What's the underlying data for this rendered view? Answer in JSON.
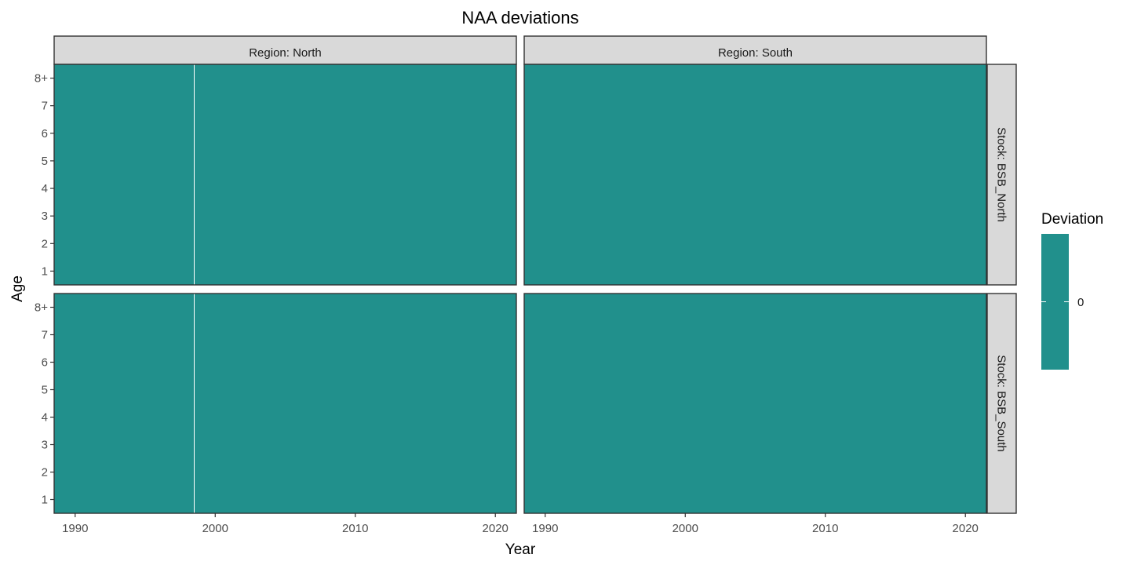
{
  "chart_data": {
    "type": "heatmap",
    "title": "NAA deviations",
    "xlabel": "Year",
    "ylabel": "Age",
    "x_ticks": [
      1990,
      2000,
      2010,
      2020
    ],
    "xlim": [
      1988.5,
      2021.5
    ],
    "y_categories": [
      "1",
      "2",
      "3",
      "4",
      "5",
      "6",
      "7",
      "8+"
    ],
    "fill_color": "#21908C",
    "gap_line_year": 1998.5,
    "facet_cols": [
      "Region: North",
      "Region: South"
    ],
    "facet_rows": [
      "Stock: BSB_North",
      "Stock: BSB_South"
    ],
    "values_all": 0,
    "legend": {
      "title": "Deviation",
      "placement": "right",
      "labels": [
        "0"
      ],
      "color": "#21908C"
    }
  }
}
